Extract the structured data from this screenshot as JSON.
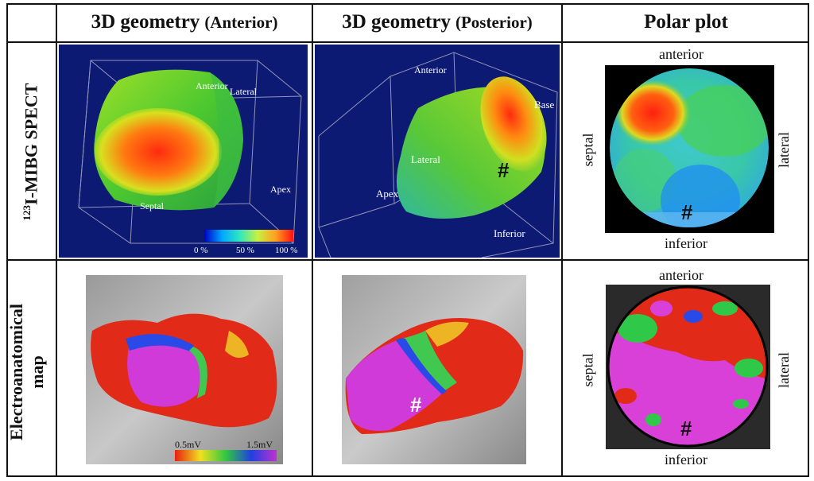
{
  "headers": {
    "col1_main": "3D geometry",
    "col1_sub": "(Anterior)",
    "col2_main": "3D geometry",
    "col2_sub": "(Posterior)",
    "col3": "Polar plot"
  },
  "rows": {
    "spect_sup": "123",
    "spect_label": "I-MIBG SPECT",
    "eam_line1": "Electroanatomical",
    "eam_line2": "map"
  },
  "spect_anterior": {
    "anterior": "Anterior",
    "lateral": "Lateral",
    "septal": "Septal",
    "apex": "Apex",
    "colorbar": {
      "min": "0 %",
      "mid": "50 %",
      "max": "100 %"
    }
  },
  "spect_posterior": {
    "anterior": "Anterior",
    "base": "Base",
    "lateral": "Lateral",
    "apex": "Apex",
    "inferior": "Inferior",
    "hash": "#"
  },
  "polar_spect": {
    "anterior": "anterior",
    "inferior": "inferior",
    "septal": "septal",
    "lateral": "lateral",
    "hash": "#"
  },
  "eam_anterior": {
    "colorbar": {
      "min": "0.5mV",
      "max": "1.5mV"
    }
  },
  "eam_posterior": {
    "hash": "#"
  },
  "polar_eam": {
    "anterior": "anterior",
    "inferior": "inferior",
    "septal": "septal",
    "lateral": "lateral",
    "hash": "#"
  },
  "colors": {
    "spect_bg": "#0d1a73",
    "magenta": "#d63ad8",
    "red": "#e8221a"
  }
}
